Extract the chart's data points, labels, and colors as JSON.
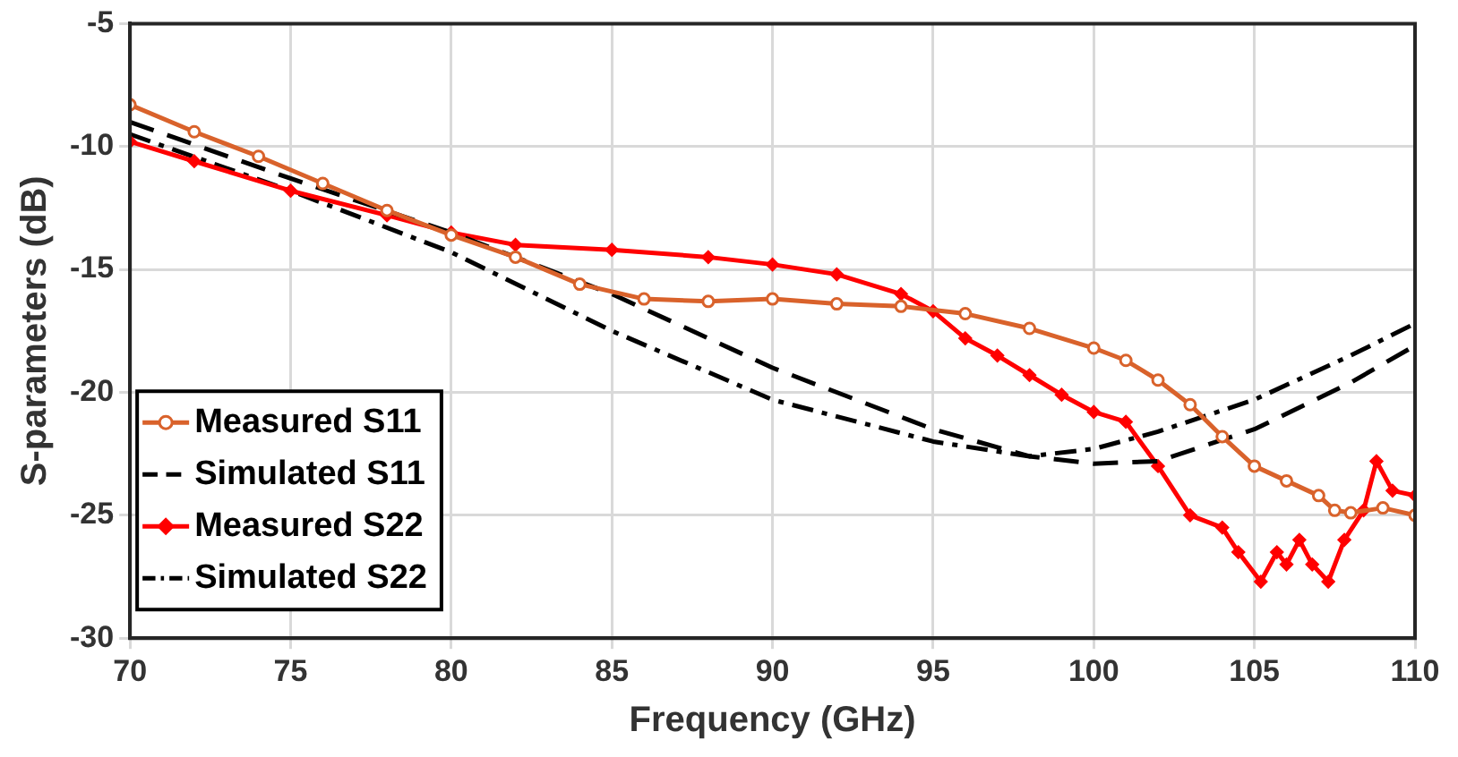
{
  "chart_data": {
    "type": "line",
    "xlabel": "Frequency (GHz)",
    "ylabel": "S-parameters (dB)",
    "xlim": [
      70,
      110
    ],
    "xticks": [
      70,
      75,
      80,
      85,
      90,
      95,
      100,
      105,
      110
    ],
    "ylim": [
      -30,
      -5
    ],
    "yticks": [
      -30,
      -25,
      -20,
      -15,
      -10,
      -5
    ],
    "grid": true,
    "legend": "bottom left",
    "series": [
      {
        "name": "Measured S11",
        "color": "#d9622b",
        "marker": "circle",
        "line_style": "solid",
        "x": [
          70,
          72,
          74,
          76,
          78,
          80,
          82,
          84,
          86,
          88,
          90,
          92,
          94,
          96,
          98,
          100,
          101,
          102,
          103,
          104,
          105,
          106,
          107,
          107.5,
          108,
          109,
          110
        ],
        "values": [
          -8.3,
          -9.4,
          -10.4,
          -11.5,
          -12.6,
          -13.6,
          -14.5,
          -15.6,
          -16.2,
          -16.3,
          -16.2,
          -16.4,
          -16.5,
          -16.8,
          -17.4,
          -18.2,
          -18.7,
          -19.5,
          -20.5,
          -21.8,
          -23,
          -23.6,
          -24.2,
          -24.8,
          -24.9,
          -24.7,
          -25
        ]
      },
      {
        "name": "Simulated S11",
        "color": "#000000",
        "marker": "none",
        "line_style": "dashed",
        "x": [
          70,
          75,
          80,
          85,
          90,
          95,
          98,
          100,
          102,
          105,
          108,
          110
        ],
        "values": [
          -9,
          -11.3,
          -13.5,
          -16,
          -19,
          -21.5,
          -22.6,
          -22.9,
          -22.8,
          -21.5,
          -19.6,
          -18.1
        ]
      },
      {
        "name": "Measured S22",
        "color": "#ff0000",
        "marker": "diamond",
        "line_style": "solid",
        "x": [
          70,
          72,
          75,
          78,
          80,
          82,
          85,
          88,
          90,
          92,
          94,
          95,
          96,
          97,
          98,
          99,
          100,
          101,
          102,
          103,
          104,
          104.5,
          105.2,
          105.7,
          106,
          106.4,
          106.8,
          107.3,
          107.8,
          108.4,
          108.8,
          109.3,
          110
        ],
        "values": [
          -9.8,
          -10.6,
          -11.8,
          -12.8,
          -13.5,
          -14,
          -14.2,
          -14.5,
          -14.8,
          -15.2,
          -16,
          -16.7,
          -17.8,
          -18.5,
          -19.3,
          -20.1,
          -20.8,
          -21.2,
          -23,
          -25,
          -25.5,
          -26.5,
          -27.7,
          -26.5,
          -27,
          -26,
          -27,
          -27.7,
          -26,
          -24.8,
          -22.8,
          -24,
          -24.2
        ]
      },
      {
        "name": "Simulated S22",
        "color": "#000000",
        "marker": "none",
        "line_style": "dashdot",
        "x": [
          70,
          75,
          80,
          85,
          90,
          95,
          98,
          100,
          102,
          105,
          108,
          110
        ],
        "values": [
          -9.5,
          -11.8,
          -14.3,
          -17.5,
          -20.3,
          -22,
          -22.6,
          -22.3,
          -21.6,
          -20.3,
          -18.5,
          -17.2
        ]
      }
    ]
  }
}
